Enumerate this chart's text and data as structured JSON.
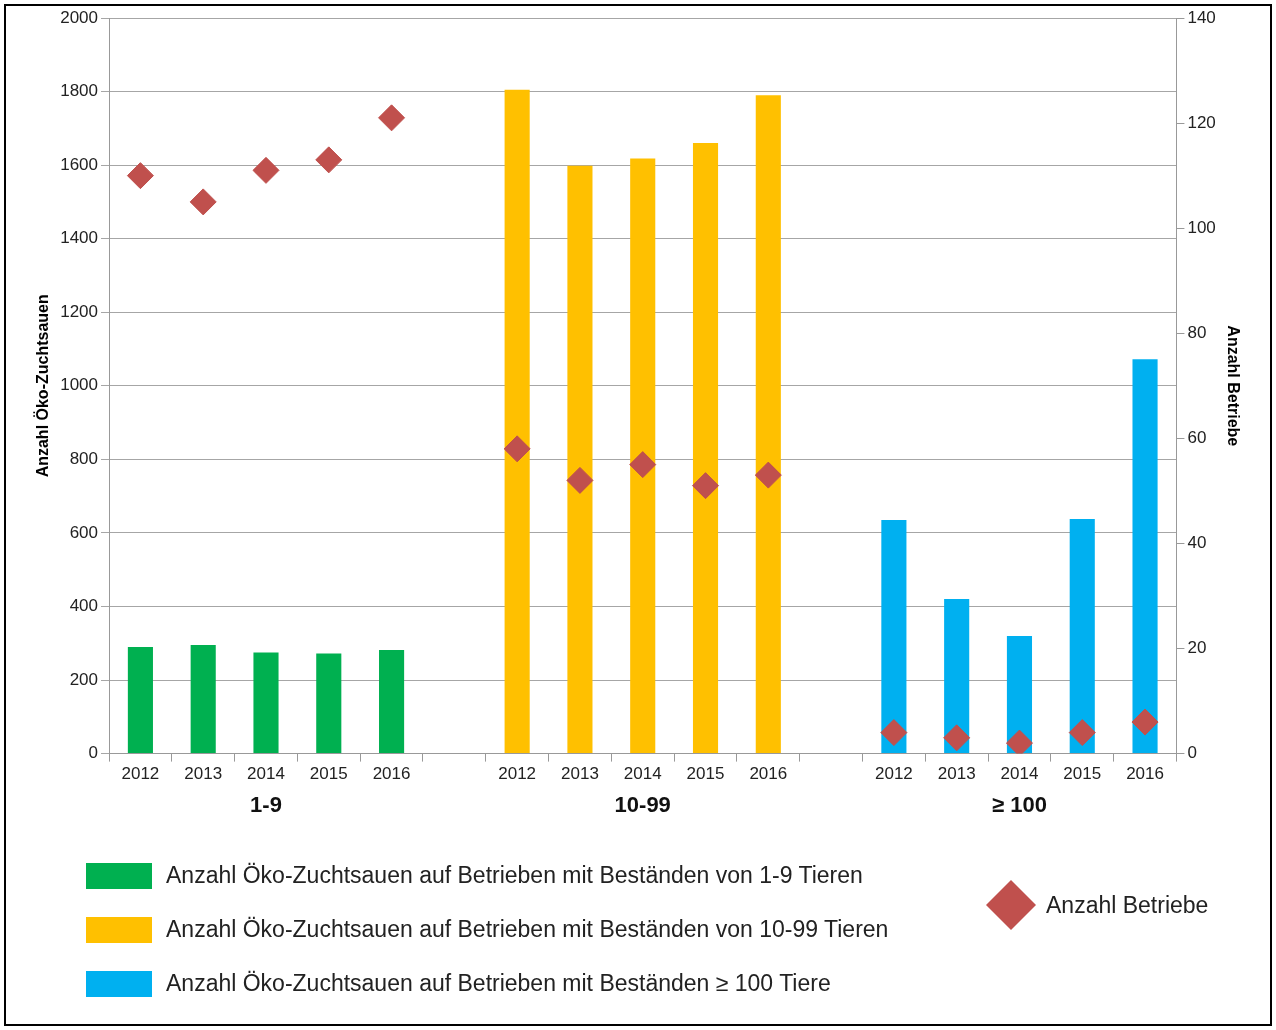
{
  "chart_data": {
    "type": "bar",
    "ylabel": "Anzahl Öko-Zuchtsauen",
    "y2label": "Anzahl Betriebe",
    "categories": [
      "2012",
      "2013",
      "2014",
      "2015",
      "2016",
      null,
      "2012",
      "2013",
      "2014",
      "2015",
      "2016",
      null,
      "2012",
      "2013",
      "2014",
      "2015",
      "2016"
    ],
    "annotations": [
      "1-9",
      "10-99",
      "≥ 100"
    ],
    "series": [
      {
        "name": "Anzahl Öko-Zuchtsauen auf Betrieben mit Beständen von 1-9 Tieren",
        "color": "#00b050",
        "values": [
          290,
          295,
          275,
          272,
          282,
          null,
          null,
          null,
          null,
          null,
          null,
          null,
          null,
          null,
          null,
          null,
          null
        ]
      },
      {
        "name": "Anzahl Öko-Zuchtsauen auf Betrieben mit Beständen von 10-99 Tieren",
        "color": "#ffc000",
        "values": [
          null,
          null,
          null,
          null,
          null,
          null,
          1805,
          1598,
          1618,
          1660,
          1790,
          null,
          null,
          null,
          null,
          null,
          null
        ]
      },
      {
        "name": "Anzahl Öko-Zuchtsauen auf Betrieben mit Beständen ≥ 100 Tiere",
        "color": "#00b0f0",
        "values": [
          null,
          null,
          null,
          null,
          null,
          null,
          null,
          null,
          null,
          null,
          null,
          null,
          635,
          420,
          320,
          638,
          1072
        ]
      },
      {
        "name": "Anzahl Betriebe",
        "type": "scatter",
        "axis": "y2",
        "marker": "diamond",
        "color": "#c0504d",
        "values": [
          110,
          105,
          111,
          113,
          121,
          null,
          58,
          52,
          55,
          51,
          53,
          null,
          4,
          3,
          2,
          4,
          6
        ]
      }
    ],
    "ylim": [
      0,
      2000
    ],
    "yticks": [
      0,
      200,
      400,
      600,
      800,
      1000,
      1200,
      1400,
      1600,
      1800,
      2000
    ],
    "y2lim": [
      0,
      140
    ],
    "y2ticks": [
      0,
      20,
      40,
      60,
      80,
      100,
      120,
      140
    ],
    "grid": "y",
    "legend": "bottom"
  }
}
